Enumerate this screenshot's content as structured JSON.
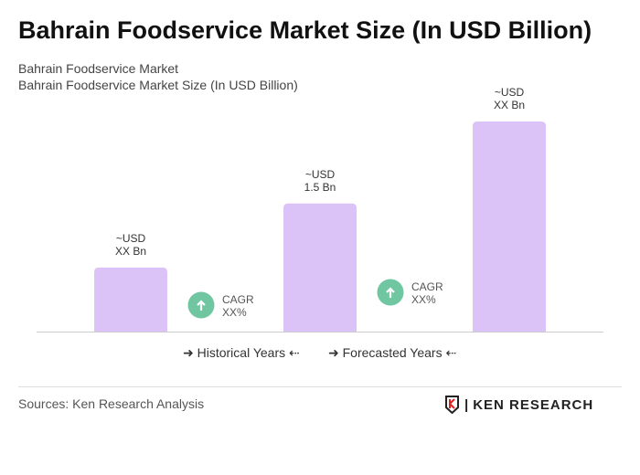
{
  "title": "Bahrain Foodservice Market Size (In USD Billion)",
  "subtitle1": "Bahrain Foodservice Market",
  "subtitle2": "Bahrain Foodservice Market Size (In USD Billion)",
  "chart_data": {
    "type": "bar",
    "values": [
      0.75,
      1.5,
      2.46
    ],
    "data_labels": [
      [
        "~USD",
        "XX Bn"
      ],
      [
        "~USD",
        "1.5 Bn"
      ],
      [
        "~USD",
        "XX Bn"
      ]
    ],
    "bar_color": "#dcc3f7",
    "cagr": [
      {
        "label": "CAGR",
        "value": "XX%"
      },
      {
        "label": "CAGR",
        "value": "XX%"
      }
    ],
    "cagr_color": "#6fc6a1",
    "ylim": [
      0,
      2.6
    ],
    "grid": false
  },
  "legend": {
    "historical": "Historical Years",
    "forecasted": "Forecasted Years"
  },
  "sources": "Sources: Ken Research Analysis",
  "logo_text": "KEN RESEARCH"
}
